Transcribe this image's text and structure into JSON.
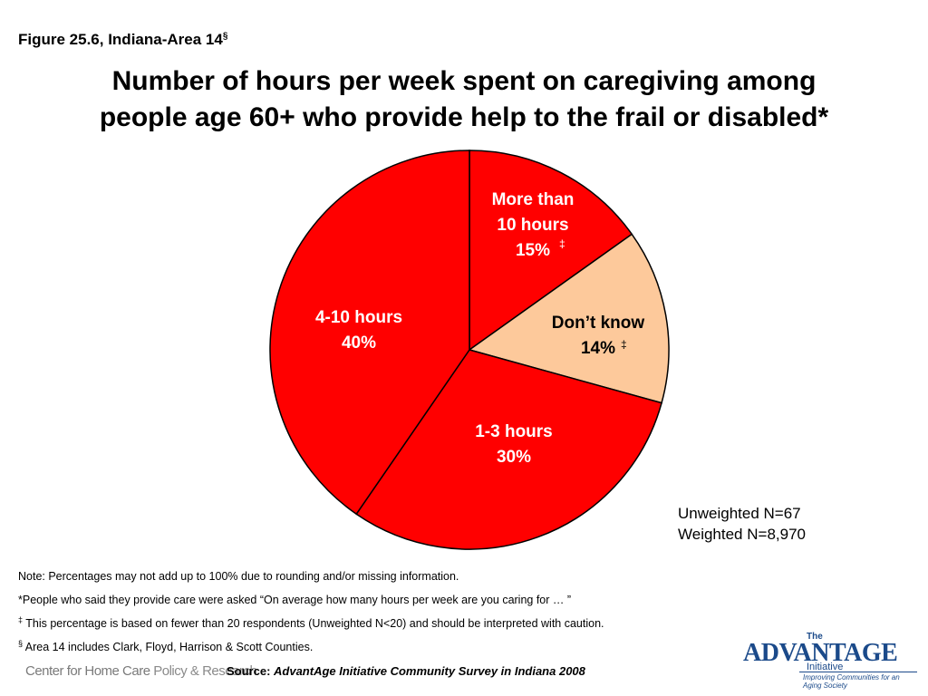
{
  "figure_label": "Figure 25.6, Indiana-Area 14",
  "figure_label_mark": "§",
  "title_line1": "Number of hours per week spent on caregiving among",
  "title_line2": "people age 60+ who provide help to the frail or disabled*",
  "chart_data": {
    "type": "pie",
    "start_angle_deg": 0,
    "direction": "clockwise",
    "slices": [
      {
        "label_lines": [
          "More than",
          "10 hours",
          "15%"
        ],
        "value": 15,
        "mark": "‡",
        "color": "#ff0000"
      },
      {
        "label_lines": [
          "Don’t know",
          "14%"
        ],
        "value": 14,
        "mark": "‡",
        "color": "#fdc99b"
      },
      {
        "label_lines": [
          "1-3 hours",
          "30%"
        ],
        "value": 30,
        "mark": "",
        "color": "#ff0000"
      },
      {
        "label_lines": [
          "4-10 hours",
          "40%"
        ],
        "value": 40,
        "mark": "",
        "color": "#ff0000"
      }
    ]
  },
  "n_unweighted": "Unweighted N=67",
  "n_weighted": "Weighted N=8,970",
  "notes": {
    "note1": "Note: Percentages may not add up to 100% due to rounding and/or missing information.",
    "note2": "*People who said they provide care were asked “On average how many hours per week are you caring for … ”",
    "note3_mark": "‡",
    "note3": " This percentage is based on fewer than 20 respondents (Unweighted N<20) and should be interpreted with caution.",
    "note4_mark": "§",
    "note4": " Area 14 includes Clark, Floyd, Harrison & Scott Counties."
  },
  "footer": {
    "center_name_a": "Center for Home Care ",
    "center_name_b": "Policy & Research",
    "source_prefix": "Source: ",
    "source_title": "AdvantAge Initiative Community Survey in Indiana 2008"
  },
  "logo": {
    "the": "The",
    "brand": "ADVANTAGE",
    "initiative": "Initiative",
    "tagline": "Improving Communities for an Aging Society"
  }
}
